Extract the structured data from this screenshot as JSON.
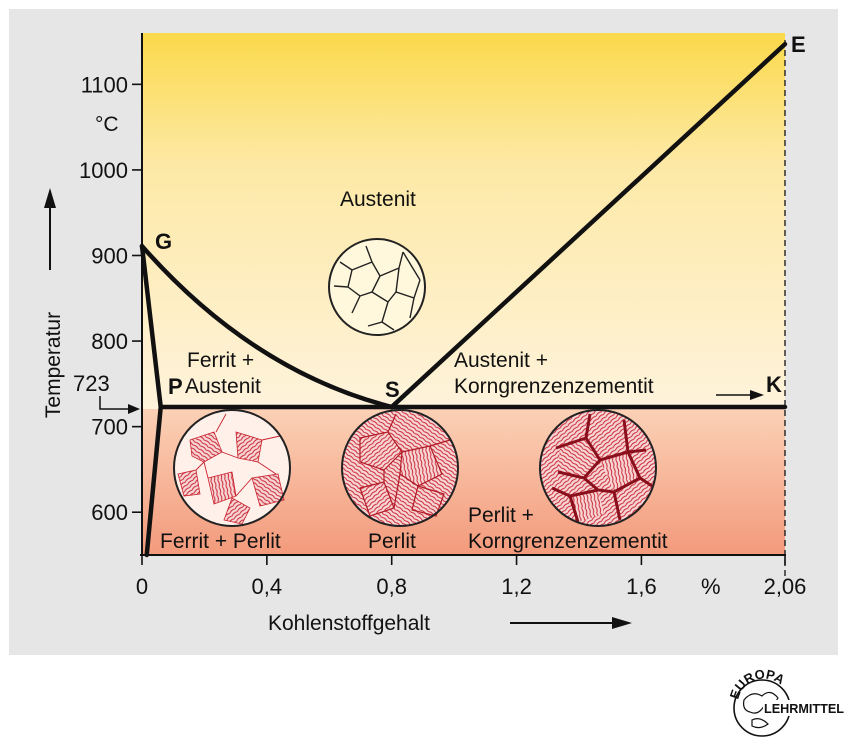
{
  "chart_data": {
    "type": "phase-diagram",
    "xlabel": "Kohlenstoffgehalt",
    "ylabel": "Temperatur",
    "x_unit": "%",
    "y_unit": "°C",
    "xlim": [
      0,
      2.06
    ],
    "ylim": [
      550,
      1160
    ],
    "x_ticks": [
      "0",
      "0,4",
      "0,8",
      "1,2",
      "1,6",
      "2,06"
    ],
    "y_ticks": [
      "600",
      "700",
      "800",
      "900",
      "1000",
      "1100"
    ],
    "eutectoid_temp_label": "723",
    "points": {
      "G": {
        "label": "G",
        "x": 0,
        "y": 911
      },
      "P": {
        "label": "P",
        "x": 0.06,
        "y": 723
      },
      "S": {
        "label": "S",
        "x": 0.8,
        "y": 723
      },
      "K": {
        "label": "K",
        "x": 2.06,
        "y": 723
      },
      "E": {
        "label": "E",
        "x": 2.06,
        "y": 1147
      }
    },
    "regions": {
      "austenit": "Austenit",
      "ferrit_austenit": [
        "Ferrit +",
        "Austenit"
      ],
      "austenit_zementit": [
        "Austenit +",
        "Korngrenzenzementit"
      ],
      "ferrit_perlit": "Ferrit + Perlit",
      "perlit": "Perlit",
      "perlit_zementit": [
        "Perlit +",
        "Korngrenzenzementit"
      ]
    }
  },
  "logo": {
    "top": "EUROPA",
    "right": "LEHRMITTEL"
  }
}
